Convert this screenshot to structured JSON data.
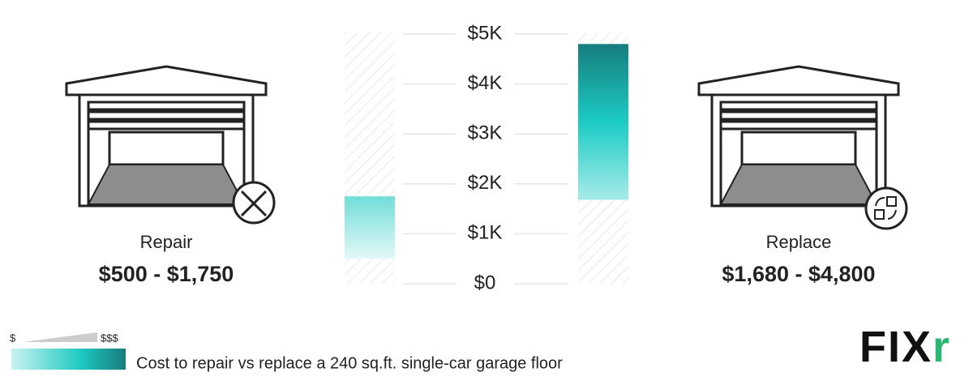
{
  "chart_data": {
    "type": "floating-bar",
    "caption": "Cost to repair vs replace a 240 sq.ft. single-car garage floor",
    "categories": [
      "Repair",
      "Replace"
    ],
    "low": [
      500,
      1680
    ],
    "high": [
      1750,
      4800
    ],
    "value_labels": [
      "$500 - $1,750",
      "$1,680 - $4,800"
    ],
    "ylim": [
      0,
      5000
    ],
    "yticks": [
      {
        "value": 0,
        "label": "$0"
      },
      {
        "value": 1000,
        "label": "$1K"
      },
      {
        "value": 2000,
        "label": "$2K"
      },
      {
        "value": 3000,
        "label": "$3K"
      },
      {
        "value": 4000,
        "label": "$4K"
      },
      {
        "value": 5000,
        "label": "$5K"
      }
    ],
    "grid": true,
    "legend": {
      "low_label": "$",
      "high_label": "$$$"
    },
    "logo": {
      "text": "FIX",
      "accent": "r"
    }
  }
}
